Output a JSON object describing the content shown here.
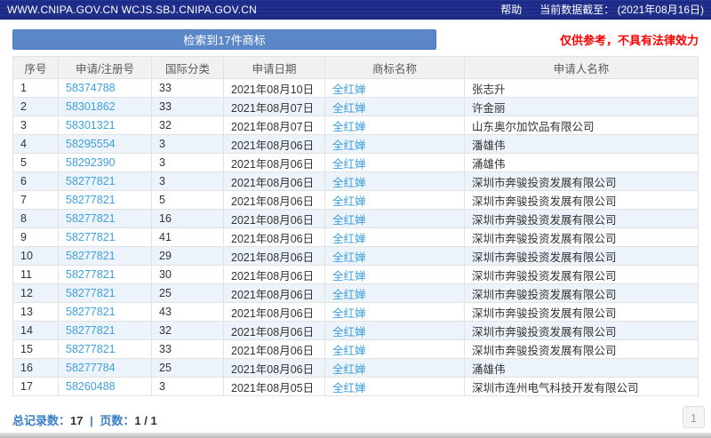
{
  "topbar": {
    "site_url": "WWW.CNIPA.GOV.CN WCJS.SBJ.CNIPA.GOV.CN",
    "help_label": "帮助",
    "data_cutoff": "当前数据截至：  (2021年08月16日)"
  },
  "toolbar": {
    "result_button_label": "检索到17件商标",
    "disclaimer": "仅供参考，不具有法律效力"
  },
  "colors": {
    "topbar_bg": "#1e2c87",
    "result_button_bg": "#5b87c9",
    "link_blue": "#3da0e0",
    "disclaimer_red": "#fe0000",
    "alt_row_bg": "#ecf3fa",
    "header_row_bg": "#f1f1f1"
  },
  "table": {
    "columns": [
      {
        "key": "no",
        "label": "序号"
      },
      {
        "key": "reg",
        "label": "申请/注册号"
      },
      {
        "key": "class",
        "label": "国际分类"
      },
      {
        "key": "date",
        "label": "申请日期"
      },
      {
        "key": "mark",
        "label": "商标名称"
      },
      {
        "key": "applicant",
        "label": "申请人名称"
      }
    ],
    "rows": [
      {
        "no": "1",
        "reg": "58374788",
        "class": "33",
        "date": "2021年08月10日",
        "mark": "全红婵",
        "applicant": "张志升"
      },
      {
        "no": "2",
        "reg": "58301862",
        "class": "33",
        "date": "2021年08月07日",
        "mark": "全红婵",
        "applicant": "许金丽"
      },
      {
        "no": "3",
        "reg": "58301321",
        "class": "32",
        "date": "2021年08月07日",
        "mark": "全红婵",
        "applicant": "山东奥尔加饮品有限公司"
      },
      {
        "no": "4",
        "reg": "58295554",
        "class": "3",
        "date": "2021年08月06日",
        "mark": "全红婵",
        "applicant": "潘雄伟"
      },
      {
        "no": "5",
        "reg": "58292390",
        "class": "3",
        "date": "2021年08月06日",
        "mark": "全红婵",
        "applicant": "涌雄伟"
      },
      {
        "no": "6",
        "reg": "58277821",
        "class": "3",
        "date": "2021年08月06日",
        "mark": "全红婵",
        "applicant": "深圳市奔骏投资发展有限公司"
      },
      {
        "no": "7",
        "reg": "58277821",
        "class": "5",
        "date": "2021年08月06日",
        "mark": "全红婵",
        "applicant": "深圳市奔骏投资发展有限公司"
      },
      {
        "no": "8",
        "reg": "58277821",
        "class": "16",
        "date": "2021年08月06日",
        "mark": "全红婵",
        "applicant": "深圳市奔骏投资发展有限公司"
      },
      {
        "no": "9",
        "reg": "58277821",
        "class": "41",
        "date": "2021年08月06日",
        "mark": "全红婵",
        "applicant": "深圳市奔骏投资发展有限公司"
      },
      {
        "no": "10",
        "reg": "58277821",
        "class": "29",
        "date": "2021年08月06日",
        "mark": "全红婵",
        "applicant": "深圳市奔骏投资发展有限公司"
      },
      {
        "no": "11",
        "reg": "58277821",
        "class": "30",
        "date": "2021年08月06日",
        "mark": "全红婵",
        "applicant": "深圳市奔骏投资发展有限公司"
      },
      {
        "no": "12",
        "reg": "58277821",
        "class": "25",
        "date": "2021年08月06日",
        "mark": "全红婵",
        "applicant": "深圳市奔骏投资发展有限公司"
      },
      {
        "no": "13",
        "reg": "58277821",
        "class": "43",
        "date": "2021年08月06日",
        "mark": "全红婵",
        "applicant": "深圳市奔骏投资发展有限公司"
      },
      {
        "no": "14",
        "reg": "58277821",
        "class": "32",
        "date": "2021年08月06日",
        "mark": "全红婵",
        "applicant": "深圳市奔骏投资发展有限公司"
      },
      {
        "no": "15",
        "reg": "58277821",
        "class": "33",
        "date": "2021年08月06日",
        "mark": "全红婵",
        "applicant": "深圳市奔骏投资发展有限公司"
      },
      {
        "no": "16",
        "reg": "58277784",
        "class": "25",
        "date": "2021年08月06日",
        "mark": "全红婵",
        "applicant": "涌雄伟"
      },
      {
        "no": "17",
        "reg": "58260488",
        "class": "3",
        "date": "2021年08月05日",
        "mark": "全红婵",
        "applicant": "深圳市连州电气科技开发有限公司"
      }
    ]
  },
  "footer": {
    "total_label": "总记录数：",
    "total_value": "17",
    "separator": "|",
    "pages_label": "页数：",
    "pages_value": "1 / 1",
    "page_button_label": "1"
  }
}
